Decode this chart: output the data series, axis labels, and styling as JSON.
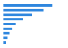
{
  "values": [
    100,
    82,
    58,
    40,
    25,
    18,
    13,
    9,
    5
  ],
  "bar_color": "#2e86de",
  "background_color": "#ffffff",
  "grid_color": "#e0e0e0",
  "xlim": [
    0,
    115
  ],
  "figsize": [
    1.0,
    0.71
  ],
  "dpi": 100,
  "bar_height": 0.55
}
